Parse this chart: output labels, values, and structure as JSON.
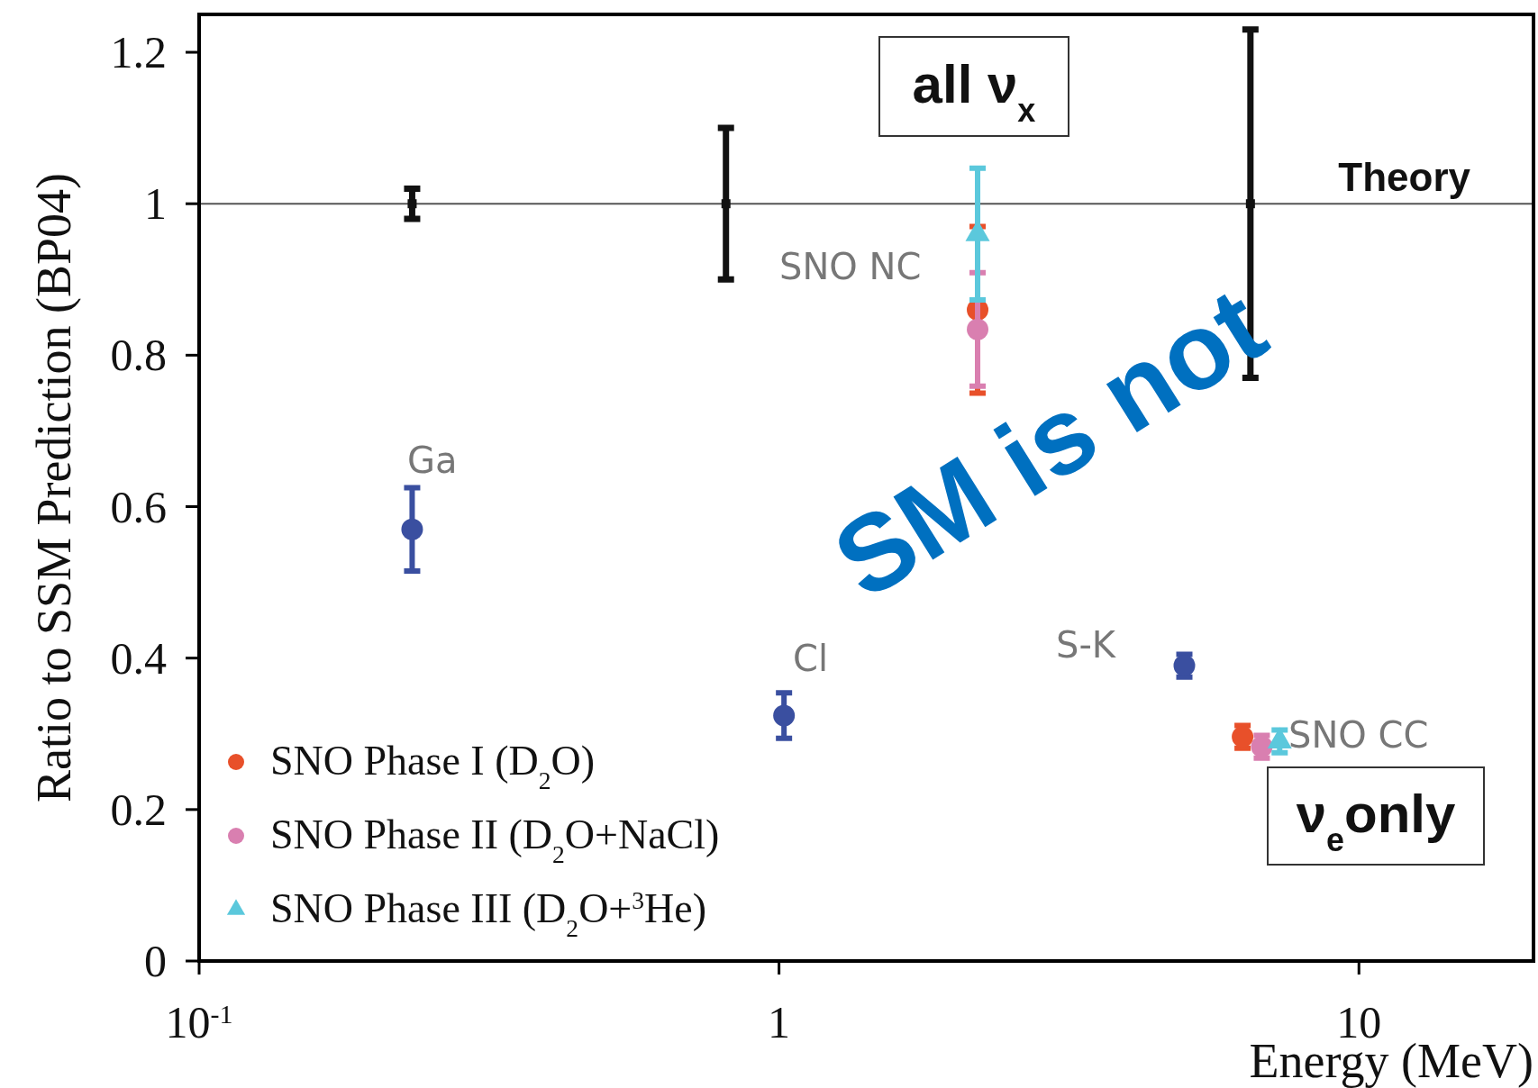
{
  "chart_data": {
    "type": "scatter",
    "xlabel": "Energy (MeV)",
    "ylabel": "Ratio to SSM Prediction (BP04)",
    "log": "x",
    "xlim": [
      0.1,
      20
    ],
    "ylim": [
      0,
      1.25
    ],
    "xticks": [
      {
        "value": 0.1,
        "label": "10$^{-1}$"
      },
      1,
      10
    ],
    "yticks": [
      0,
      0.2,
      0.4,
      0.6,
      0.8,
      1,
      1.2
    ],
    "grid": false,
    "legend": "bottom left",
    "series": [
      {
        "name": "SNO Phase I (D$_{2}$O)",
        "color": "#e8502a",
        "marker": "circle",
        "x": [
          2.2,
          6.3
        ],
        "values": [
          0.86,
          0.296
        ],
        "errors": [
          0.11,
          0.015
        ]
      },
      {
        "name": "SNO Phase II (D$_{2}$O+NaCl)",
        "color": "#d97fb0",
        "marker": "circle",
        "x": [
          2.2,
          6.8
        ],
        "values": [
          0.834,
          0.283
        ],
        "errors": [
          0.075,
          0.015
        ]
      },
      {
        "name": "SNO Phase III (D$_{2}$O+$^{3}$He)",
        "color": "#5bc8dc",
        "marker": "triangle",
        "x": [
          2.2,
          7.3
        ],
        "values": [
          0.96,
          0.29
        ],
        "errors": [
          0.087,
          0.015
        ]
      },
      {
        "color": "#3a4fa0",
        "marker": "circle",
        "x": [
          0.233,
          1.02,
          5
        ],
        "values": [
          0.57,
          0.324,
          0.39
        ],
        "errors": [
          0.055,
          0.03,
          0.015
        ]
      },
      {
        "color": "#111111",
        "marker": "square",
        "x": [
          0.233,
          0.81,
          6.5
        ],
        "values": [
          1,
          1,
          1
        ],
        "errors": [
          0.02,
          0.1,
          0.23
        ]
      }
    ],
    "ref_lines": [
      {
        "axis": "y",
        "value": 1,
        "label": "Theory",
        "color": "#555555"
      }
    ],
    "annotations": [
      "Ga",
      "Cl",
      "S-K",
      "SNO NC",
      "SNO CC",
      "all ν$_{x}$",
      "ν$_{e}$only",
      "SM is not"
    ]
  }
}
